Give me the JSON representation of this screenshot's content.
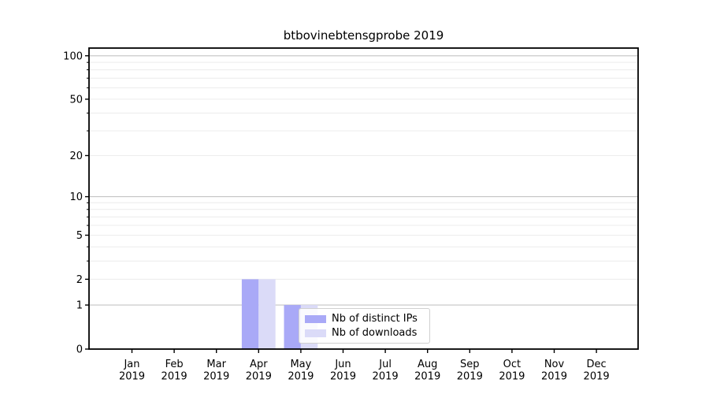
{
  "chart_data": {
    "type": "bar",
    "title": "btbovinebtensgprobe 2019",
    "categories": [
      "Jan",
      "Feb",
      "Mar",
      "Apr",
      "May",
      "Jun",
      "Jul",
      "Aug",
      "Sep",
      "Oct",
      "Nov",
      "Dec"
    ],
    "x_tick_year_line": "2019",
    "series": [
      {
        "name": "Nb of distinct IPs",
        "color": "#a9a9f7",
        "values": [
          0,
          0,
          0,
          2,
          1,
          0,
          0,
          0,
          0,
          0,
          0,
          0
        ]
      },
      {
        "name": "Nb of downloads",
        "color": "#dbdbf8",
        "values": [
          0,
          0,
          0,
          2,
          1,
          0,
          0,
          0,
          0,
          0,
          0,
          0
        ]
      }
    ],
    "y_axis": {
      "scale": "log10(1+x)",
      "tick_labels": [
        0,
        1,
        2,
        5,
        10,
        20,
        50,
        100
      ],
      "max": 113,
      "minor_ticks": [
        3,
        4,
        6,
        7,
        8,
        9,
        30,
        40,
        60,
        70,
        80,
        90
      ],
      "light_gridlines": [
        2,
        3,
        4,
        5,
        6,
        7,
        8,
        9,
        20,
        30,
        40,
        50,
        60,
        70,
        80,
        90
      ],
      "dark_gridlines": [
        1,
        10,
        100
      ]
    },
    "legend": {
      "position": "lower center-left, overlapping plot"
    },
    "grid": true,
    "colors": {
      "axis": "#000000",
      "grid_minor": "#ececec",
      "grid_major": "#c4c4c4",
      "background": "#ffffff",
      "legend_border": "#d0d0d0",
      "tick_label": "#000000"
    }
  }
}
